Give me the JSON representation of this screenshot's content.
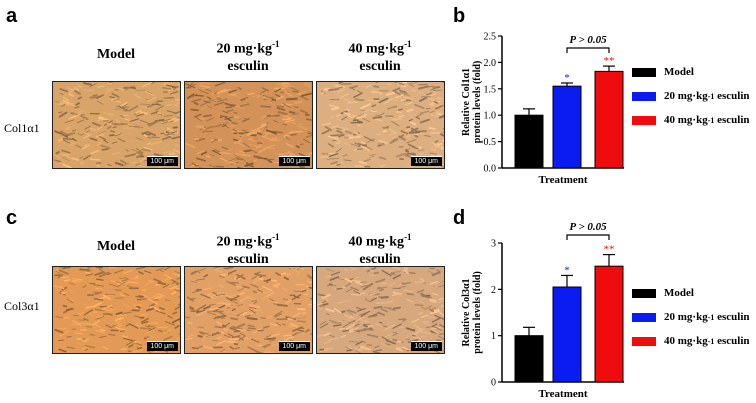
{
  "panels": {
    "a": {
      "letter": "a",
      "columns": [
        {
          "line1": "Model",
          "line2": ""
        },
        {
          "line1": "20 mg·kg",
          "sup": "-1",
          "line2": "esculin"
        },
        {
          "line1": "40 mg·kg",
          "sup": "-1",
          "line2": "esculin"
        }
      ],
      "row_label": "Col1α1",
      "scale_label": "100 μm",
      "image_tones": [
        "#d9a46a",
        "#d39358",
        "#dcae80"
      ]
    },
    "c": {
      "letter": "c",
      "columns": [
        {
          "line1": "Model",
          "line2": ""
        },
        {
          "line1": "20 mg·kg",
          "sup": "-1",
          "line2": "esculin"
        },
        {
          "line1": "40 mg·kg",
          "sup": "-1",
          "line2": "esculin"
        }
      ],
      "row_label": "Col3α1",
      "scale_label": "100 μm",
      "image_tones": [
        "#e29a56",
        "#e1a066",
        "#d7a87e"
      ]
    },
    "b": {
      "letter": "b"
    },
    "d": {
      "letter": "d"
    }
  },
  "legend": [
    {
      "label": "Model",
      "sup": "",
      "suffix": "",
      "color": "#000000"
    },
    {
      "label": "20 mg·kg",
      "sup": "-1",
      "suffix": " esculin",
      "color": "#0a1cf2"
    },
    {
      "label": "40 mg·kg",
      "sup": "-1",
      "suffix": " esculin",
      "color": "#f00c0c"
    }
  ],
  "chart_data": [
    {
      "type": "bar",
      "panel": "b",
      "categories": [
        "Model",
        "20 mg·kg-1 esculin",
        "40 mg·kg-1 esculin"
      ],
      "values": [
        1.0,
        1.55,
        1.83
      ],
      "errors": [
        0.12,
        0.06,
        0.1
      ],
      "colors": [
        "#000000",
        "#0a1cf2",
        "#f00c0c"
      ],
      "ylabel_line1": "Relative Col1α1",
      "ylabel_line2": "protein levels (fold)",
      "xlabel": "Treatment",
      "ylim": [
        0,
        2.5
      ],
      "yticks": [
        "0.0",
        "0.5",
        "1.0",
        "1.5",
        "2.0",
        "2.5"
      ],
      "ytick_values": [
        0,
        0.5,
        1.0,
        1.5,
        2.0,
        2.5
      ],
      "significance": [
        "",
        "*",
        "**"
      ],
      "comparison": {
        "text": "P > 0.05",
        "from": 1,
        "to": 2
      }
    },
    {
      "type": "bar",
      "panel": "d",
      "categories": [
        "Model",
        "20 mg·kg-1 esculin",
        "40 mg·kg-1 esculin"
      ],
      "values": [
        1.0,
        2.05,
        2.5
      ],
      "errors": [
        0.18,
        0.25,
        0.25
      ],
      "colors": [
        "#000000",
        "#0a1cf2",
        "#f00c0c"
      ],
      "ylabel_line1": "Relative Col3α1",
      "ylabel_line2": "protein levels (fold)",
      "xlabel": "Treatment",
      "ylim": [
        0,
        3
      ],
      "yticks": [
        "0",
        "1",
        "2",
        "3"
      ],
      "ytick_values": [
        0,
        1,
        2,
        3
      ],
      "significance": [
        "",
        "*",
        "**"
      ],
      "comparison": {
        "text": "P > 0.05",
        "from": 1,
        "to": 2
      }
    }
  ]
}
